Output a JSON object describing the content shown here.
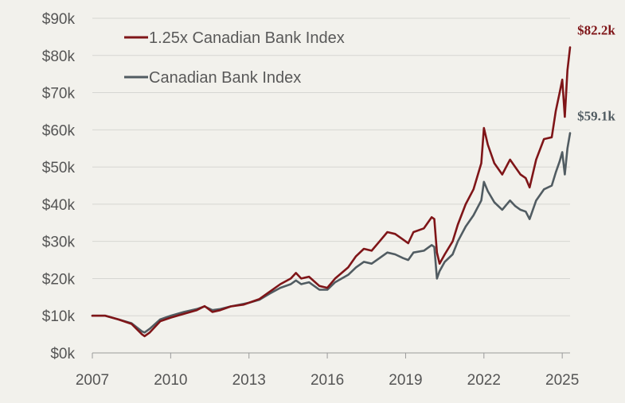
{
  "chart_data": {
    "type": "line",
    "title": "",
    "xlabel": "",
    "ylabel": "",
    "xlim": [
      2007,
      2025.3
    ],
    "ylim": [
      0,
      90
    ],
    "y_unit": "thousand USD",
    "grid": "horizontal",
    "legend_position": "top-left",
    "x_ticks": [
      2007,
      2010,
      2013,
      2016,
      2019,
      2022,
      2025
    ],
    "y_ticks": [
      0,
      10,
      20,
      30,
      40,
      50,
      60,
      70,
      80,
      90
    ],
    "y_tick_labels": [
      "$0k",
      "$10k",
      "$20k",
      "$30k",
      "$40k",
      "$50k",
      "$60k",
      "$70k",
      "$80k",
      "$90k"
    ],
    "series": [
      {
        "name": "1.25x Canadian Bank Index",
        "color": "#7f1518",
        "end_label": "$82.2k",
        "points": [
          [
            2007.0,
            10.0
          ],
          [
            2007.5,
            10.0
          ],
          [
            2008.0,
            9.0
          ],
          [
            2008.5,
            7.8
          ],
          [
            2008.9,
            5.0
          ],
          [
            2009.0,
            4.5
          ],
          [
            2009.2,
            5.5
          ],
          [
            2009.6,
            8.5
          ],
          [
            2010.0,
            9.5
          ],
          [
            2010.5,
            10.5
          ],
          [
            2011.0,
            11.5
          ],
          [
            2011.3,
            12.6
          ],
          [
            2011.6,
            11.0
          ],
          [
            2011.9,
            11.5
          ],
          [
            2012.3,
            12.5
          ],
          [
            2012.8,
            13.0
          ],
          [
            2013.0,
            13.5
          ],
          [
            2013.4,
            14.5
          ],
          [
            2013.8,
            16.5
          ],
          [
            2014.2,
            18.5
          ],
          [
            2014.6,
            20.0
          ],
          [
            2014.8,
            21.5
          ],
          [
            2015.0,
            20.0
          ],
          [
            2015.3,
            20.5
          ],
          [
            2015.7,
            18.0
          ],
          [
            2016.0,
            17.5
          ],
          [
            2016.3,
            20.0
          ],
          [
            2016.8,
            23.0
          ],
          [
            2017.1,
            26.0
          ],
          [
            2017.4,
            28.0
          ],
          [
            2017.7,
            27.5
          ],
          [
            2018.0,
            30.0
          ],
          [
            2018.3,
            32.5
          ],
          [
            2018.6,
            32.0
          ],
          [
            2018.9,
            30.5
          ],
          [
            2019.1,
            29.5
          ],
          [
            2019.3,
            32.5
          ],
          [
            2019.7,
            33.5
          ],
          [
            2020.0,
            36.5
          ],
          [
            2020.1,
            36.0
          ],
          [
            2020.2,
            27.0
          ],
          [
            2020.3,
            24.0
          ],
          [
            2020.5,
            26.5
          ],
          [
            2020.8,
            30.0
          ],
          [
            2021.0,
            34.5
          ],
          [
            2021.3,
            40.0
          ],
          [
            2021.6,
            44.0
          ],
          [
            2021.9,
            51.0
          ],
          [
            2022.0,
            60.5
          ],
          [
            2022.15,
            56.0
          ],
          [
            2022.4,
            51.0
          ],
          [
            2022.7,
            48.0
          ],
          [
            2023.0,
            52.0
          ],
          [
            2023.2,
            50.0
          ],
          [
            2023.4,
            48.0
          ],
          [
            2023.6,
            47.0
          ],
          [
            2023.75,
            44.5
          ],
          [
            2024.0,
            52.0
          ],
          [
            2024.3,
            57.5
          ],
          [
            2024.6,
            58.0
          ],
          [
            2024.75,
            65.0
          ],
          [
            2024.9,
            70.0
          ],
          [
            2025.0,
            73.5
          ],
          [
            2025.1,
            63.5
          ],
          [
            2025.2,
            76.0
          ],
          [
            2025.3,
            82.2
          ]
        ]
      },
      {
        "name": "Canadian Bank Index",
        "color": "#515c62",
        "end_label": "$59.1k",
        "points": [
          [
            2007.0,
            10.0
          ],
          [
            2007.5,
            10.0
          ],
          [
            2008.0,
            9.0
          ],
          [
            2008.5,
            8.0
          ],
          [
            2008.9,
            5.8
          ],
          [
            2009.0,
            5.5
          ],
          [
            2009.2,
            6.5
          ],
          [
            2009.6,
            9.0
          ],
          [
            2010.0,
            10.0
          ],
          [
            2010.5,
            11.0
          ],
          [
            2011.0,
            11.8
          ],
          [
            2011.3,
            12.5
          ],
          [
            2011.6,
            11.5
          ],
          [
            2011.9,
            11.8
          ],
          [
            2012.3,
            12.5
          ],
          [
            2012.8,
            13.2
          ],
          [
            2013.0,
            13.5
          ],
          [
            2013.4,
            14.3
          ],
          [
            2013.8,
            16.0
          ],
          [
            2014.2,
            17.5
          ],
          [
            2014.6,
            18.5
          ],
          [
            2014.8,
            19.5
          ],
          [
            2015.0,
            18.5
          ],
          [
            2015.3,
            19.0
          ],
          [
            2015.7,
            17.0
          ],
          [
            2016.0,
            17.0
          ],
          [
            2016.3,
            19.0
          ],
          [
            2016.8,
            21.0
          ],
          [
            2017.1,
            23.0
          ],
          [
            2017.4,
            24.5
          ],
          [
            2017.7,
            24.0
          ],
          [
            2018.0,
            25.5
          ],
          [
            2018.3,
            27.0
          ],
          [
            2018.6,
            26.5
          ],
          [
            2018.9,
            25.5
          ],
          [
            2019.1,
            25.0
          ],
          [
            2019.3,
            27.0
          ],
          [
            2019.7,
            27.5
          ],
          [
            2020.0,
            29.0
          ],
          [
            2020.1,
            28.5
          ],
          [
            2020.2,
            20.0
          ],
          [
            2020.3,
            22.0
          ],
          [
            2020.5,
            24.5
          ],
          [
            2020.8,
            26.5
          ],
          [
            2021.0,
            30.0
          ],
          [
            2021.3,
            34.0
          ],
          [
            2021.6,
            37.0
          ],
          [
            2021.9,
            41.0
          ],
          [
            2022.0,
            46.0
          ],
          [
            2022.15,
            43.5
          ],
          [
            2022.4,
            40.5
          ],
          [
            2022.7,
            38.5
          ],
          [
            2023.0,
            41.0
          ],
          [
            2023.2,
            39.5
          ],
          [
            2023.4,
            38.5
          ],
          [
            2023.6,
            38.0
          ],
          [
            2023.75,
            36.0
          ],
          [
            2024.0,
            41.0
          ],
          [
            2024.3,
            44.0
          ],
          [
            2024.6,
            45.0
          ],
          [
            2024.75,
            48.5
          ],
          [
            2024.9,
            51.5
          ],
          [
            2025.0,
            54.0
          ],
          [
            2025.1,
            48.0
          ],
          [
            2025.2,
            55.0
          ],
          [
            2025.3,
            59.1
          ]
        ]
      }
    ]
  }
}
